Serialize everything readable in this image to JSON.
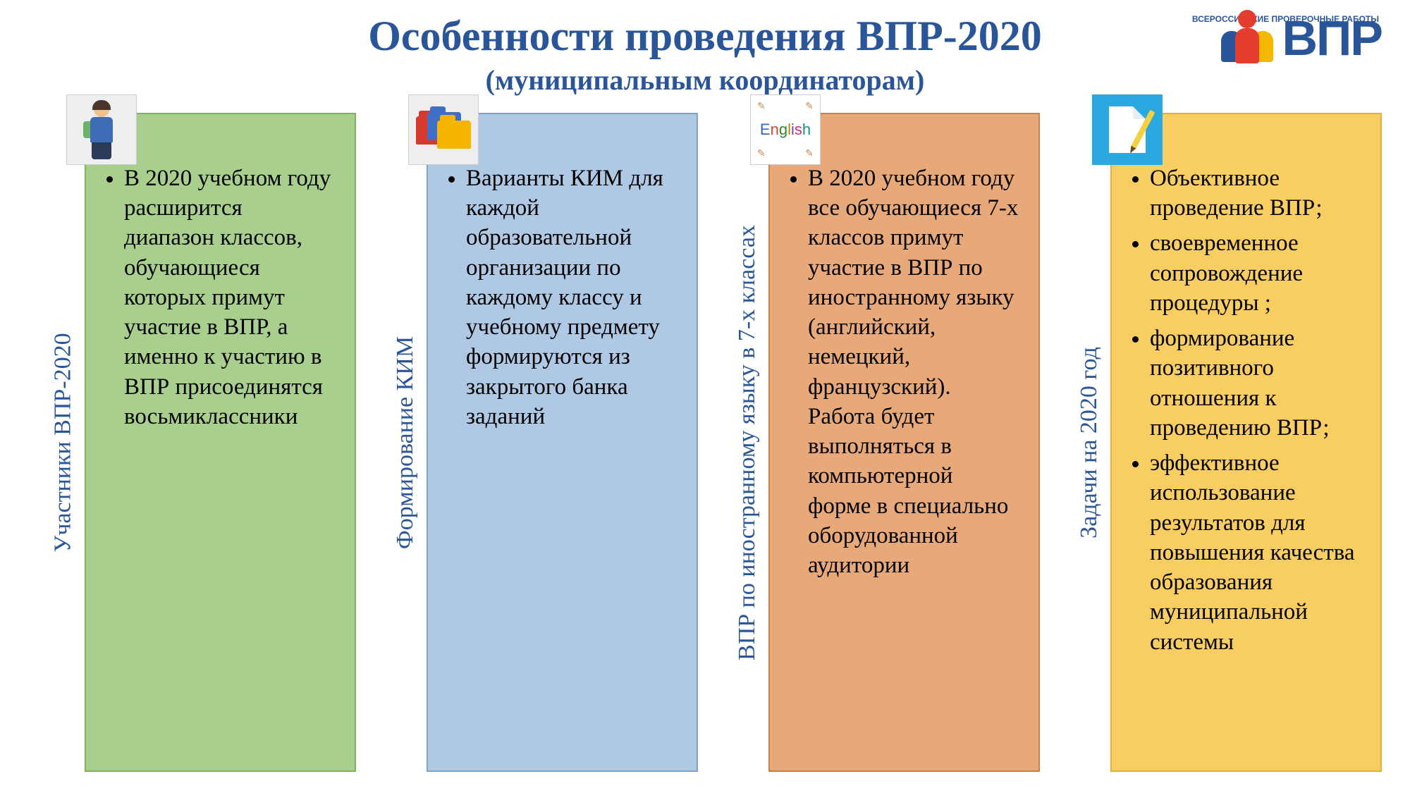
{
  "header": {
    "title": "Особенности проведения ВПР-2020",
    "subtitle": "(муниципальным координаторам)"
  },
  "logo": {
    "text": "ВПР",
    "supertext": "ВСЕРОССИЙСКИЕ ПРОВЕРОЧНЫЕ РАБОТЫ"
  },
  "columns": [
    {
      "label": "Участники ВПР-2020",
      "background": "#a8cf8e",
      "border": "#7fb359",
      "icon": "student",
      "bullets": [
        "В 2020 учебном году расширится диапазон классов, обучающиеся которых примут участие в ВПР, а именно к участию в ВПР присоединятся восьмиклассники"
      ]
    },
    {
      "label": "Формирование  КИМ",
      "background": "#afc8e3",
      "border": "#7ea2c9",
      "icon": "folders",
      "bullets": [
        "Варианты КИМ для каждой образовательной организации по каждому классу и учебному предмету формируются из закрытого банка заданий"
      ]
    },
    {
      "label": "ВПР по иностранному языку в 7-х классах",
      "background": "#e8a97a",
      "border": "#cd8149",
      "icon": "english",
      "bullets": [
        "В 2020 учебном году все обучающиеся    7-х классов примут участие в ВПР по иностранному языку (английский, немецкий, французский). Работа будет выполняться в компьютерной форме в специально оборудованной аудитории"
      ]
    },
    {
      "label": "Задачи на 2020 год",
      "background": "#f8ce63",
      "border": "#e3b13a",
      "icon": "document",
      "bullets": [
        "Объективное проведение ВПР;",
        "своевременное сопровождение процедуры ;",
        "формирование позитивного отношения к проведению ВПР;",
        "эффективное использование результатов для повышения качества образования муниципальной системы"
      ]
    }
  ],
  "typography": {
    "title_fontsize": 60,
    "subtitle_fontsize": 40,
    "vlabel_fontsize": 34,
    "bullet_fontsize": 33,
    "title_color": "#2a5699"
  }
}
